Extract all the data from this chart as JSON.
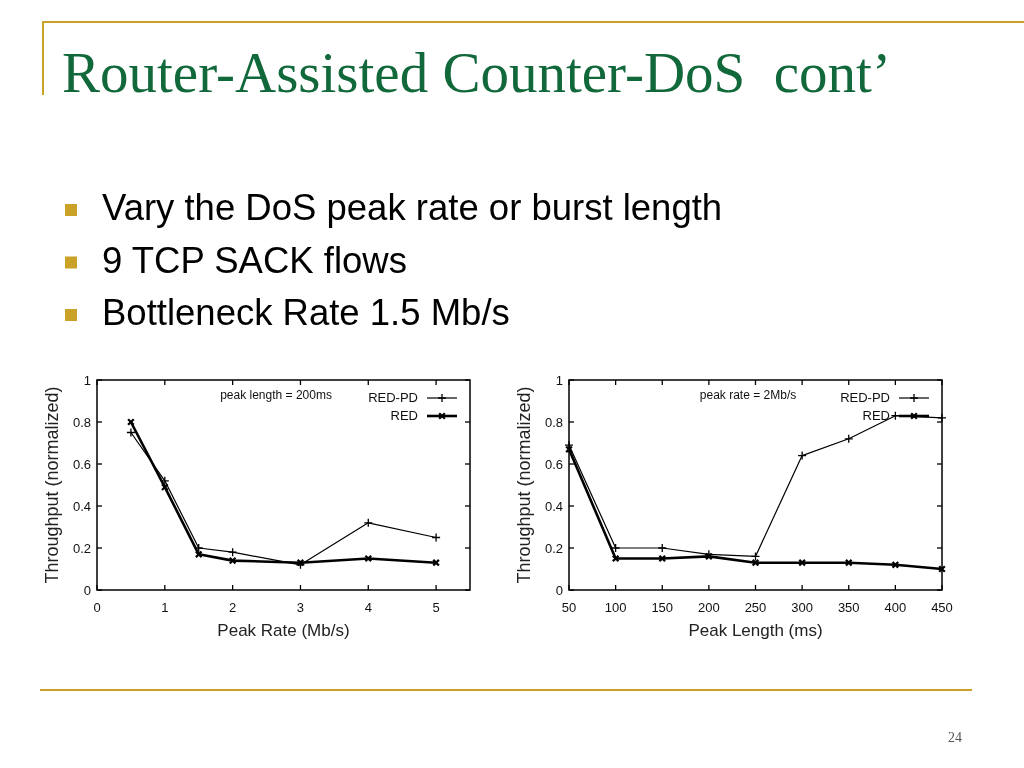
{
  "chart_data": [
    {
      "type": "other",
      "title": "Router-Assisted Counter-DoS  cont’",
      "annotations": [
        "Vary the DoS peak rate or burst length",
        "9 TCP SACK flows",
        "Bottleneck Rate 1.5 Mb/s",
        "24"
      ]
    },
    {
      "type": "line",
      "xlabel": "Peak Rate (Mb/s)",
      "ylabel": "Throughput (normalized)",
      "annotations": [
        "peak length = 200ms"
      ],
      "x": [
        0.5,
        1,
        1.5,
        2,
        3,
        4,
        5
      ],
      "series": [
        {
          "name": "RED-PD",
          "color": "#000000",
          "marker": "cross",
          "values": [
            0.75,
            0.52,
            0.2,
            0.18,
            0.12,
            0.32,
            0.25
          ]
        },
        {
          "name": "RED",
          "color": "#000000",
          "marker": "cross",
          "values": [
            0.8,
            0.49,
            0.17,
            0.14,
            0.13,
            0.15,
            0.13
          ]
        }
      ],
      "xlim": [
        0,
        5.5
      ],
      "xticks": [
        0,
        1,
        2,
        3,
        4,
        5
      ],
      "ylim": [
        0,
        1
      ],
      "yticks": [
        0,
        0.2,
        0.4,
        0.6,
        0.8,
        1
      ],
      "legend": "top right"
    },
    {
      "type": "line",
      "xlabel": "Peak Length (ms)",
      "ylabel": "Throughput (normalized)",
      "annotations": [
        "peak rate = 2Mb/s"
      ],
      "x": [
        50,
        100,
        150,
        200,
        250,
        300,
        350,
        400,
        450
      ],
      "series": [
        {
          "name": "RED-PD",
          "color": "#000000",
          "marker": "cross",
          "values": [
            0.69,
            0.2,
            0.2,
            0.17,
            0.16,
            0.64,
            0.72,
            0.83,
            0.82
          ]
        },
        {
          "name": "RED",
          "color": "#000000",
          "marker": "cross",
          "values": [
            0.67,
            0.15,
            0.15,
            0.16,
            0.13,
            0.13,
            0.13,
            0.12,
            0.1
          ]
        }
      ],
      "xlim": [
        50,
        450
      ],
      "xticks": [
        50,
        100,
        150,
        200,
        250,
        300,
        350,
        400,
        450
      ],
      "ylim": [
        0,
        1
      ],
      "yticks": [
        0,
        0.2,
        0.4,
        0.6,
        0.8,
        1
      ],
      "legend": "top right"
    }
  ]
}
